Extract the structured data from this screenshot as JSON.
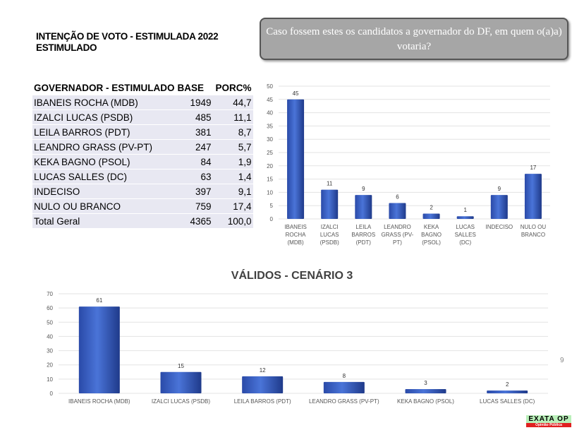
{
  "title_line1": "INTENÇÃO DE VOTO - ESTIMULADA 2022",
  "title_line2": "ESTIMULADO",
  "question": "Caso fossem estes os candidatos a governador do DF, em quem o(a)a) votaria?",
  "table": {
    "headers": [
      "GOVERNADOR - ESTIMULADO",
      "BASE",
      "PORC%"
    ],
    "rows": [
      [
        "IBANEIS ROCHA (MDB)",
        "1949",
        "44,7"
      ],
      [
        "IZALCI LUCAS (PSDB)",
        "485",
        "11,1"
      ],
      [
        "LEILA BARROS (PDT)",
        "381",
        "8,7"
      ],
      [
        "LEANDRO GRASS (PV-PT)",
        "247",
        "5,7"
      ],
      [
        "KEKA BAGNO (PSOL)",
        "84",
        "1,9"
      ],
      [
        "LUCAS SALLES (DC)",
        "63",
        "1,4"
      ],
      [
        "INDECISO",
        "397",
        "9,1"
      ],
      [
        "NULO OU BRANCO",
        "759",
        "17,4"
      ],
      [
        "Total Geral",
        "4365",
        "100,0"
      ]
    ]
  },
  "page_number": "9",
  "logo": {
    "top": "EXATA OP",
    "bottom": "Opinião Pública"
  },
  "colors": {
    "bar": "#3a5fc0",
    "bar_dark": "#1f3d8f"
  },
  "chart_data": [
    {
      "type": "bar",
      "title": "",
      "categories": [
        [
          "IBANEIS",
          "ROCHA",
          "(MDB)"
        ],
        [
          "IZALCI",
          "LUCAS",
          "(PSDB)"
        ],
        [
          "LEILA",
          "BARROS",
          "(PDT)"
        ],
        [
          "LEANDRO",
          "GRASS (PV-",
          "PT)"
        ],
        [
          "KEKA",
          "BAGNO",
          "(PSOL)"
        ],
        [
          "LUCAS",
          "SALLES",
          "(DC)"
        ],
        [
          "INDECISO"
        ],
        [
          "NULO OU",
          "BRANCO"
        ]
      ],
      "values": [
        45,
        11,
        9,
        6,
        2,
        1,
        9,
        17
      ],
      "ylim": [
        0,
        50
      ],
      "yticks": [
        0,
        5,
        10,
        15,
        20,
        25,
        30,
        35,
        40,
        45,
        50
      ],
      "grid": true
    },
    {
      "type": "bar",
      "title": "VÁLIDOS - CENÁRIO 3",
      "categories": [
        [
          "IBANEIS ROCHA (MDB)"
        ],
        [
          "IZALCI LUCAS (PSDB)"
        ],
        [
          "LEILA BARROS (PDT)"
        ],
        [
          "LEANDRO GRASS (PV-PT)"
        ],
        [
          "KEKA BAGNO (PSOL)"
        ],
        [
          "LUCAS SALLES (DC)"
        ]
      ],
      "values": [
        61,
        15,
        12,
        8,
        3,
        2
      ],
      "ylim": [
        0,
        70
      ],
      "yticks": [
        0,
        10,
        20,
        30,
        40,
        50,
        60,
        70
      ],
      "grid": true
    }
  ]
}
